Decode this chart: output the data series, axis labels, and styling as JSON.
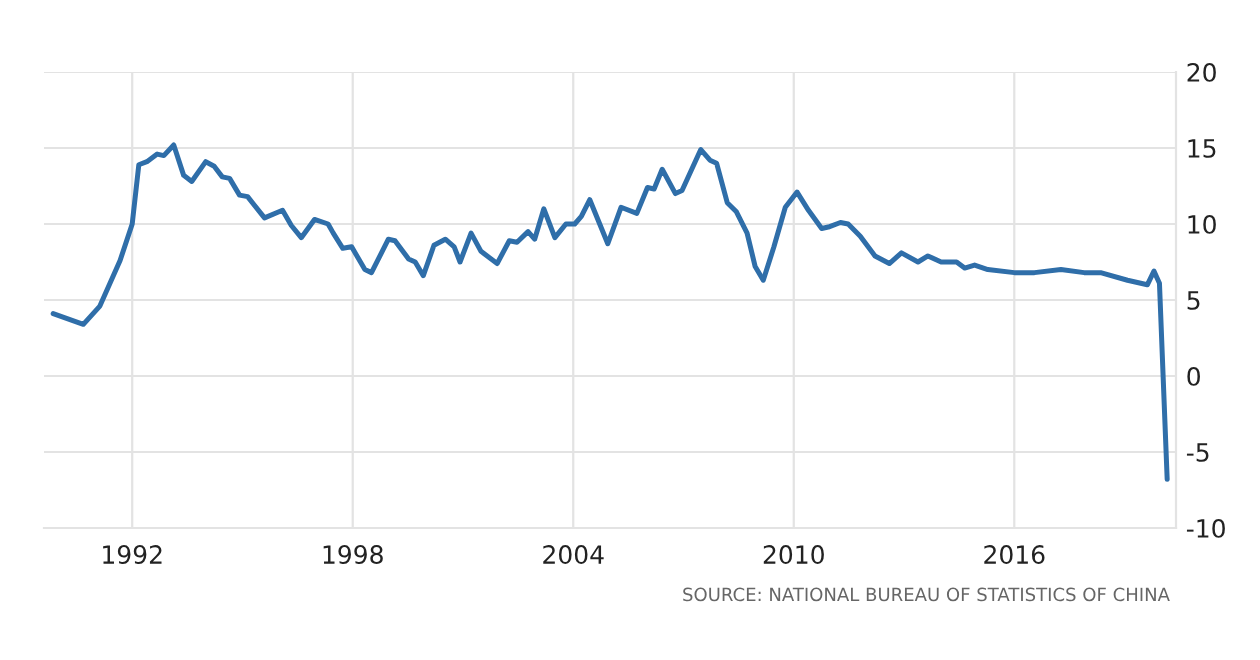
{
  "chart_data": {
    "type": "line",
    "x": [
      1989.85,
      1990.67,
      1991.12,
      1991.67,
      1992.0,
      1992.18,
      1992.4,
      1992.68,
      1992.86,
      1993.13,
      1993.4,
      1993.62,
      1994.0,
      1994.23,
      1994.45,
      1994.65,
      1994.92,
      1995.14,
      1995.6,
      1996.09,
      1996.33,
      1996.6,
      1996.96,
      1997.33,
      1997.47,
      1997.73,
      1997.97,
      1998.33,
      1998.51,
      1998.97,
      1999.15,
      1999.52,
      1999.7,
      1999.92,
      2000.21,
      2000.52,
      2000.76,
      2000.92,
      2001.22,
      2001.49,
      2001.93,
      2002.26,
      2002.47,
      2002.77,
      2002.95,
      2003.2,
      2003.5,
      2003.8,
      2004.04,
      2004.22,
      2004.45,
      2004.94,
      2005.3,
      2005.73,
      2006.02,
      2006.2,
      2006.42,
      2006.78,
      2006.96,
      2007.47,
      2007.72,
      2007.9,
      2008.19,
      2008.44,
      2008.73,
      2008.95,
      2009.17,
      2009.46,
      2009.77,
      2010.09,
      2010.4,
      2010.76,
      2010.94,
      2011.27,
      2011.48,
      2011.81,
      2012.21,
      2012.6,
      2012.93,
      2013.38,
      2013.65,
      2014.01,
      2014.43,
      2014.65,
      2014.92,
      2015.28,
      2016.0,
      2016.55,
      2017.27,
      2017.9,
      2018.35,
      2019.08,
      2019.62,
      2019.8,
      2019.95,
      2020.16
    ],
    "series": [
      {
        "color": "#2f6ea9",
        "values": [
          4.1,
          3.4,
          4.6,
          7.6,
          10.0,
          13.9,
          14.1,
          14.6,
          14.5,
          15.2,
          13.2,
          12.8,
          14.1,
          13.8,
          13.1,
          13.0,
          11.9,
          11.8,
          10.4,
          10.9,
          9.9,
          9.1,
          10.3,
          10.0,
          9.4,
          8.4,
          8.5,
          7.0,
          6.8,
          9.0,
          8.9,
          7.7,
          7.5,
          6.6,
          8.6,
          9.0,
          8.5,
          7.5,
          9.4,
          8.2,
          7.4,
          8.9,
          8.8,
          9.5,
          9.0,
          11.0,
          9.1,
          10.0,
          10.0,
          10.5,
          11.6,
          8.7,
          11.1,
          10.7,
          12.4,
          12.3,
          13.6,
          12.0,
          12.2,
          14.9,
          14.2,
          14.0,
          11.4,
          10.8,
          9.4,
          7.2,
          6.3,
          8.5,
          11.1,
          12.1,
          10.9,
          9.7,
          9.8,
          10.1,
          10.0,
          9.2,
          7.9,
          7.4,
          8.1,
          7.5,
          7.9,
          7.5,
          7.5,
          7.1,
          7.3,
          7.0,
          6.8,
          6.8,
          7.0,
          6.8,
          6.8,
          6.3,
          6.0,
          6.9,
          6.1,
          -6.8
        ]
      }
    ],
    "xlim": [
      1989.6,
      2020.4
    ],
    "xticks": [
      1992,
      1998,
      2004,
      2010,
      2016
    ],
    "ylim": [
      -10,
      20
    ],
    "yticks": [
      -10,
      -5,
      0,
      5,
      10,
      15,
      20
    ],
    "grid": true,
    "marker": "none",
    "line_style": "solid",
    "annotations": [
      "SOURCE: NATIONAL BUREAU OF STATISTICS OF CHINA"
    ]
  }
}
